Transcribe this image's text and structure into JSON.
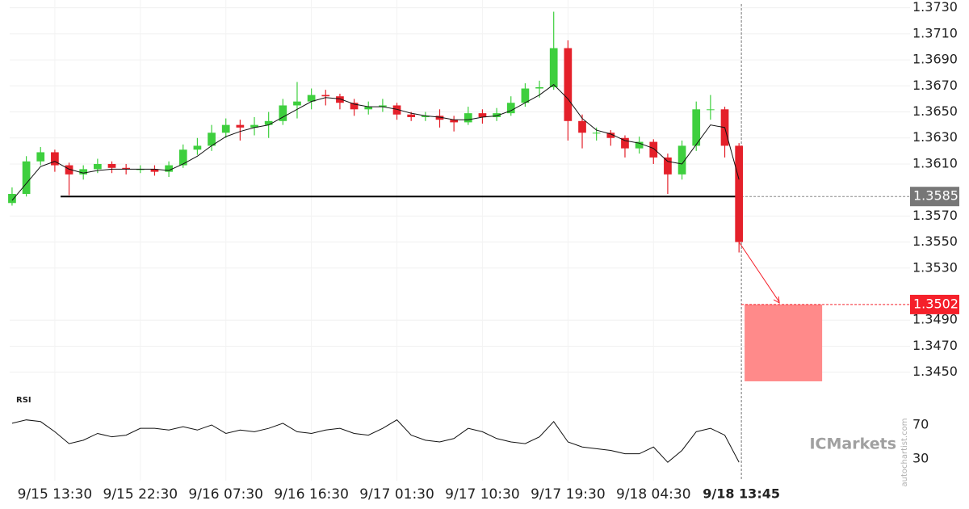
{
  "chart_data": [
    {
      "type": "candlestick",
      "x": [
        "9/15 09:00",
        "9/15 10:30",
        "9/15 12:00",
        "9/15 13:30",
        "9/15 15:00",
        "9/15 16:30",
        "9/15 18:00",
        "9/15 19:30",
        "9/15 21:00",
        "9/15 22:30",
        "9/16 00:00",
        "9/16 01:30",
        "9/16 03:00",
        "9/16 04:30",
        "9/16 06:00",
        "9/16 07:30",
        "9/16 09:00",
        "9/16 10:30",
        "9/16 12:00",
        "9/16 13:30",
        "9/16 15:00",
        "9/16 16:30",
        "9/16 18:00",
        "9/16 19:30",
        "9/16 21:00",
        "9/16 22:30",
        "9/17 00:00",
        "9/17 01:30",
        "9/17 03:00",
        "9/17 04:30",
        "9/17 06:00",
        "9/17 07:30",
        "9/17 09:00",
        "9/17 10:30",
        "9/17 12:00",
        "9/17 13:30",
        "9/17 15:00",
        "9/17 16:30",
        "9/17 18:00",
        "9/17 19:30",
        "9/17 21:00",
        "9/17 22:30",
        "9/18 00:00",
        "9/18 01:30",
        "9/18 03:00",
        "9/18 04:30",
        "9/18 06:00",
        "9/18 07:30",
        "9/18 09:00",
        "9/18 10:30",
        "9/18 12:00",
        "9/18 13:30"
      ],
      "open": [
        1.358,
        1.3587,
        1.3612,
        1.3619,
        1.3609,
        1.3602,
        1.3606,
        1.361,
        1.3607,
        1.3606,
        1.3606,
        1.3604,
        1.3609,
        1.3621,
        1.3624,
        1.3634,
        1.364,
        1.3638,
        1.364,
        1.3643,
        1.3655,
        1.3658,
        1.3663,
        1.3662,
        1.3657,
        1.3652,
        1.3654,
        1.3655,
        1.3648,
        1.3646,
        1.3647,
        1.3644,
        1.3642,
        1.3649,
        1.3646,
        1.3649,
        1.3657,
        1.3668,
        1.3669,
        1.3699,
        1.3643,
        1.3634,
        1.3634,
        1.363,
        1.3622,
        1.3627,
        1.3615,
        1.3602,
        1.3624,
        1.3652,
        1.3652,
        1.3624
      ],
      "high": [
        1.3592,
        1.3616,
        1.3623,
        1.3621,
        1.3611,
        1.3609,
        1.3614,
        1.3612,
        1.361,
        1.3609,
        1.3609,
        1.3612,
        1.3625,
        1.363,
        1.364,
        1.3645,
        1.3644,
        1.3646,
        1.365,
        1.366,
        1.3673,
        1.3668,
        1.3667,
        1.3664,
        1.366,
        1.3658,
        1.366,
        1.3657,
        1.365,
        1.365,
        1.3652,
        1.3647,
        1.3654,
        1.3652,
        1.3653,
        1.3662,
        1.3672,
        1.3674,
        1.3727,
        1.3705,
        1.3648,
        1.3638,
        1.3636,
        1.3632,
        1.3631,
        1.3629,
        1.3618,
        1.3628,
        1.3658,
        1.3663,
        1.3654,
        1.3626
      ],
      "low": [
        1.3578,
        1.3585,
        1.3609,
        1.3604,
        1.3586,
        1.3598,
        1.3603,
        1.3603,
        1.3602,
        1.3603,
        1.3601,
        1.36,
        1.3607,
        1.3617,
        1.362,
        1.363,
        1.3628,
        1.3632,
        1.363,
        1.364,
        1.3645,
        1.3652,
        1.3655,
        1.3652,
        1.3647,
        1.3648,
        1.365,
        1.3644,
        1.3643,
        1.3643,
        1.3638,
        1.3635,
        1.364,
        1.3641,
        1.3643,
        1.3647,
        1.3654,
        1.3661,
        1.3667,
        1.3628,
        1.3622,
        1.3628,
        1.3624,
        1.3615,
        1.3618,
        1.361,
        1.3587,
        1.3598,
        1.362,
        1.3644,
        1.3615,
        1.3542
      ],
      "close": [
        1.3587,
        1.3612,
        1.3619,
        1.3609,
        1.3602,
        1.3606,
        1.361,
        1.3607,
        1.3606,
        1.3606,
        1.3604,
        1.3609,
        1.3621,
        1.3624,
        1.3634,
        1.364,
        1.3638,
        1.364,
        1.3643,
        1.3655,
        1.3658,
        1.3663,
        1.3662,
        1.3657,
        1.3652,
        1.3654,
        1.3655,
        1.3648,
        1.3646,
        1.3647,
        1.3644,
        1.3642,
        1.3649,
        1.3646,
        1.3649,
        1.3657,
        1.3668,
        1.3669,
        1.3699,
        1.3643,
        1.3634,
        1.3634,
        1.363,
        1.3622,
        1.3627,
        1.3615,
        1.3602,
        1.3624,
        1.3652,
        1.3652,
        1.3624,
        1.355
      ],
      "up_color": "#3ecf3e",
      "down_color": "#e4202a",
      "overlays": [
        {
          "type": "line",
          "color": "#111111",
          "values": [
            1.3582,
            1.3595,
            1.3608,
            1.3612,
            1.3606,
            1.3603,
            1.3605,
            1.3606,
            1.3606,
            1.3606,
            1.3606,
            1.3605,
            1.361,
            1.3616,
            1.3624,
            1.3631,
            1.3635,
            1.3638,
            1.364,
            1.3646,
            1.3652,
            1.3658,
            1.3661,
            1.366,
            1.3656,
            1.3654,
            1.3654,
            1.3652,
            1.3649,
            1.3647,
            1.3646,
            1.3644,
            1.3644,
            1.3646,
            1.3647,
            1.3651,
            1.3657,
            1.3663,
            1.3671,
            1.366,
            1.3645,
            1.3636,
            1.3633,
            1.3628,
            1.3626,
            1.3622,
            1.3612,
            1.361,
            1.3625,
            1.364,
            1.3638,
            1.3598
          ]
        }
      ],
      "xlim": [
        "9/15 08:45",
        "9/19 07:30"
      ],
      "xticks": [
        "9/15 13:30",
        "9/15 22:30",
        "9/16 07:30",
        "9/16 16:30",
        "9/17 01:30",
        "9/17 10:30",
        "9/17 19:30",
        "9/18 04:30"
      ],
      "current_time": "9/18 13:45",
      "ylim": [
        1.3438,
        1.3736
      ],
      "yticks": [
        {
          "value": 1.373,
          "label": "1.3730"
        },
        {
          "value": 1.371,
          "label": "1.3710"
        },
        {
          "value": 1.369,
          "label": "1.3690"
        },
        {
          "value": 1.367,
          "label": "1.3670"
        },
        {
          "value": 1.365,
          "label": "1.3650"
        },
        {
          "value": 1.363,
          "label": "1.3630"
        },
        {
          "value": 1.361,
          "label": "1.3610"
        },
        {
          "value": 1.357,
          "label": "1.3570"
        },
        {
          "value": 1.355,
          "label": "1.3550"
        },
        {
          "value": 1.353,
          "label": "1.3530"
        },
        {
          "value": 1.349,
          "label": "1.3490"
        },
        {
          "value": 1.347,
          "label": "1.3470"
        },
        {
          "value": 1.345,
          "label": "1.3450"
        }
      ],
      "grid": true,
      "support": 1.3585,
      "support_color": "#777777",
      "target": 1.3502,
      "target_zone_low": 1.3443,
      "target_color": "#ff8a8a",
      "target_label_color": "#f5202a"
    },
    {
      "type": "line",
      "title": "RSI",
      "color": "#111111",
      "values": [
        72,
        76,
        74,
        62,
        48,
        52,
        60,
        56,
        58,
        66,
        66,
        64,
        68,
        64,
        70,
        60,
        64,
        62,
        66,
        72,
        62,
        60,
        64,
        66,
        60,
        58,
        66,
        76,
        58,
        52,
        50,
        54,
        66,
        62,
        54,
        50,
        48,
        56,
        74,
        50,
        44,
        42,
        40,
        36,
        36,
        44,
        26,
        40,
        62,
        66,
        58,
        26
      ],
      "ylim": [
        9,
        90
      ],
      "yticks": [
        70,
        30
      ]
    }
  ],
  "watermark": "ICMarkets",
  "credit": "autochartist.com"
}
